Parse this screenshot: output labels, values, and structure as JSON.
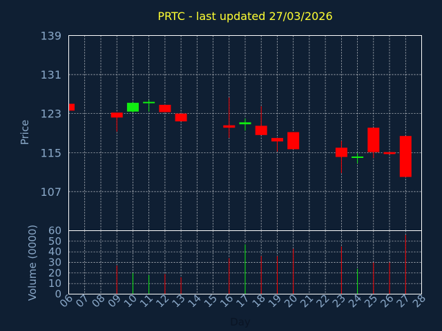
{
  "chart_data": {
    "type": "candlestick",
    "title": "PRTC - last updated 27/03/2026",
    "xlabel": "Day",
    "ylabel": "Price",
    "volume_label": "Volume (0000)",
    "x_ticks": [
      "06",
      "07",
      "08",
      "09",
      "10",
      "11",
      "12",
      "13",
      "14",
      "15",
      "16",
      "17",
      "18",
      "19",
      "20",
      "21",
      "22",
      "23",
      "24",
      "25",
      "26",
      "27",
      "28"
    ],
    "price_ticks": [
      107,
      115,
      123,
      131,
      139
    ],
    "volume_ticks": [
      0,
      10,
      20,
      30,
      40,
      50,
      60
    ],
    "price_range": [
      99,
      139
    ],
    "volume_range": [
      0,
      60
    ],
    "grid": true,
    "colors": {
      "up": "#11ee11",
      "down": "#ff0000",
      "title": "#ffff33",
      "axis": "#8aa8c8",
      "background": "#0f1f33"
    },
    "candles": [
      {
        "day": 6,
        "open": 125.0,
        "close": 123.6,
        "high": 125.0,
        "low": 123.6,
        "volume": 0
      },
      {
        "day": 9,
        "open": 123.2,
        "close": 122.2,
        "high": 123.2,
        "low": 119.3,
        "volume": 27
      },
      {
        "day": 10,
        "open": 123.4,
        "close": 125.2,
        "high": 125.3,
        "low": 123.2,
        "volume": 20
      },
      {
        "day": 11,
        "open": 125.2,
        "close": 125.4,
        "high": 125.8,
        "low": 123.4,
        "volume": 18
      },
      {
        "day": 12,
        "open": 124.8,
        "close": 123.3,
        "high": 124.8,
        "low": 123.3,
        "volume": 19
      },
      {
        "day": 13,
        "open": 123.0,
        "close": 121.4,
        "high": 123.0,
        "low": 121.4,
        "volume": 16
      },
      {
        "day": 16,
        "open": 120.6,
        "close": 120.1,
        "high": 126.3,
        "low": 118.0,
        "volume": 34
      },
      {
        "day": 17,
        "open": 120.8,
        "close": 121.2,
        "high": 122.0,
        "low": 119.5,
        "volume": 47
      },
      {
        "day": 18,
        "open": 120.5,
        "close": 118.6,
        "high": 124.5,
        "low": 118.6,
        "volume": 36
      },
      {
        "day": 19,
        "open": 118.0,
        "close": 117.3,
        "high": 118.0,
        "low": 115.2,
        "volume": 36
      },
      {
        "day": 20,
        "open": 119.2,
        "close": 115.7,
        "high": 119.2,
        "low": 115.7,
        "volume": 43
      },
      {
        "day": 23,
        "open": 116.0,
        "close": 114.1,
        "high": 117.4,
        "low": 110.8,
        "volume": 45
      },
      {
        "day": 24,
        "open": 114.2,
        "close": 114.2,
        "high": 114.9,
        "low": 112.8,
        "volume": 24
      },
      {
        "day": 25,
        "open": 120.1,
        "close": 115.1,
        "high": 120.1,
        "low": 113.9,
        "volume": 30
      },
      {
        "day": 26,
        "open": 115.1,
        "close": 114.7,
        "high": 115.1,
        "low": 114.7,
        "volume": 30
      },
      {
        "day": 27,
        "open": 118.4,
        "close": 110.0,
        "high": 118.4,
        "low": 110.0,
        "volume": 56
      }
    ]
  }
}
